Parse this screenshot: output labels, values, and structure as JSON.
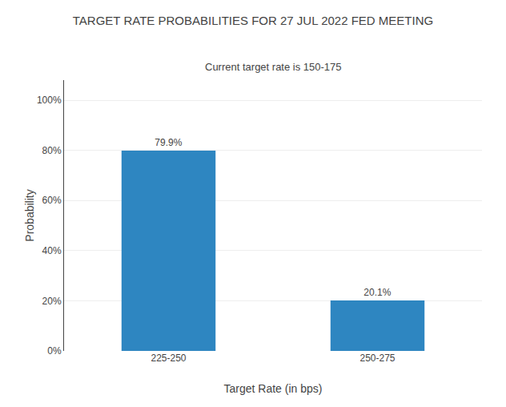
{
  "chart_data": {
    "type": "bar",
    "title": "TARGET RATE PROBABILITIES FOR 27 JUL 2022 FED MEETING",
    "subtitle": "Current target rate is 150-175",
    "categories": [
      "225-250",
      "250-275"
    ],
    "values": [
      79.9,
      20.1
    ],
    "value_labels": [
      "79.9%",
      "20.1%"
    ],
    "data_labels": true,
    "color": "#2E86C1",
    "xlabel": "Target Rate (in bps)",
    "ylabel": "Probability",
    "ylim": [
      0,
      108
    ],
    "yticks": [
      {
        "value": 0,
        "label": "0%"
      },
      {
        "value": 20,
        "label": "20%"
      },
      {
        "value": 40,
        "label": "40%"
      },
      {
        "value": 60,
        "label": "60%"
      },
      {
        "value": 80,
        "label": "80%"
      },
      {
        "value": 100,
        "label": "100%"
      }
    ],
    "grid": true
  }
}
